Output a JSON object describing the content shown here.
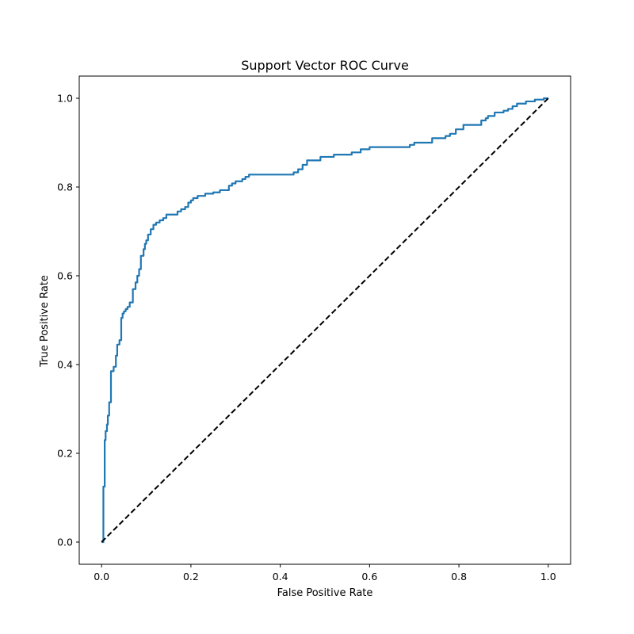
{
  "chart_data": {
    "type": "line",
    "title": "Support Vector ROC Curve",
    "xlabel": "False Positive Rate",
    "ylabel": "True Positive Rate",
    "xlim": [
      -0.05,
      1.05
    ],
    "ylim": [
      -0.05,
      1.05
    ],
    "xticks": [
      0.0,
      0.2,
      0.4,
      0.6,
      0.8,
      1.0
    ],
    "yticks": [
      0.0,
      0.2,
      0.4,
      0.6,
      0.8,
      1.0
    ],
    "xtick_labels": [
      "0.0",
      "0.2",
      "0.4",
      "0.6",
      "0.8",
      "1.0"
    ],
    "ytick_labels": [
      "0.0",
      "0.2",
      "0.4",
      "0.6",
      "0.8",
      "1.0"
    ],
    "grid": false,
    "legend": null,
    "series": [
      {
        "style": "solid",
        "color": "#1f77b4",
        "x": [
          0.0,
          0.004,
          0.004,
          0.007,
          0.007,
          0.009,
          0.009,
          0.012,
          0.012,
          0.014,
          0.014,
          0.017,
          0.017,
          0.021,
          0.021,
          0.027,
          0.027,
          0.032,
          0.032,
          0.035,
          0.035,
          0.04,
          0.04,
          0.044,
          0.044,
          0.047,
          0.047,
          0.05,
          0.05,
          0.054,
          0.054,
          0.058,
          0.058,
          0.063,
          0.063,
          0.07,
          0.07,
          0.076,
          0.076,
          0.08,
          0.08,
          0.084,
          0.084,
          0.088,
          0.088,
          0.094,
          0.094,
          0.097,
          0.097,
          0.1,
          0.1,
          0.104,
          0.104,
          0.11,
          0.11,
          0.116,
          0.116,
          0.122,
          0.122,
          0.13,
          0.13,
          0.138,
          0.138,
          0.145,
          0.145,
          0.17,
          0.17,
          0.178,
          0.178,
          0.187,
          0.187,
          0.194,
          0.194,
          0.2,
          0.2,
          0.205,
          0.205,
          0.215,
          0.215,
          0.232,
          0.232,
          0.25,
          0.25,
          0.265,
          0.265,
          0.285,
          0.285,
          0.292,
          0.292,
          0.3,
          0.3,
          0.315,
          0.315,
          0.322,
          0.322,
          0.33,
          0.33,
          0.43,
          0.43,
          0.44,
          0.44,
          0.45,
          0.45,
          0.46,
          0.46,
          0.49,
          0.49,
          0.52,
          0.52,
          0.56,
          0.56,
          0.58,
          0.58,
          0.6,
          0.6,
          0.69,
          0.69,
          0.7,
          0.7,
          0.74,
          0.74,
          0.77,
          0.77,
          0.78,
          0.78,
          0.793,
          0.793,
          0.81,
          0.81,
          0.85,
          0.85,
          0.86,
          0.86,
          0.865,
          0.865,
          0.88,
          0.88,
          0.9,
          0.9,
          0.91,
          0.91,
          0.92,
          0.92,
          0.93,
          0.93,
          0.95,
          0.95,
          0.97,
          0.97,
          0.99,
          0.99,
          1.0
        ],
        "y": [
          0.0,
          0.0,
          0.125,
          0.125,
          0.23,
          0.23,
          0.25,
          0.25,
          0.265,
          0.265,
          0.285,
          0.285,
          0.315,
          0.315,
          0.385,
          0.385,
          0.395,
          0.395,
          0.42,
          0.42,
          0.445,
          0.445,
          0.455,
          0.455,
          0.505,
          0.505,
          0.515,
          0.515,
          0.52,
          0.52,
          0.525,
          0.525,
          0.53,
          0.53,
          0.54,
          0.54,
          0.57,
          0.57,
          0.585,
          0.585,
          0.6,
          0.6,
          0.615,
          0.615,
          0.645,
          0.645,
          0.66,
          0.66,
          0.672,
          0.672,
          0.68,
          0.68,
          0.693,
          0.693,
          0.705,
          0.705,
          0.715,
          0.715,
          0.72,
          0.72,
          0.725,
          0.725,
          0.73,
          0.73,
          0.738,
          0.738,
          0.745,
          0.745,
          0.75,
          0.75,
          0.755,
          0.755,
          0.765,
          0.765,
          0.77,
          0.77,
          0.775,
          0.775,
          0.78,
          0.78,
          0.785,
          0.785,
          0.788,
          0.788,
          0.793,
          0.793,
          0.803,
          0.803,
          0.808,
          0.808,
          0.813,
          0.813,
          0.818,
          0.818,
          0.823,
          0.823,
          0.828,
          0.828,
          0.833,
          0.833,
          0.84,
          0.84,
          0.85,
          0.85,
          0.86,
          0.86,
          0.868,
          0.868,
          0.873,
          0.873,
          0.878,
          0.878,
          0.885,
          0.885,
          0.89,
          0.89,
          0.895,
          0.895,
          0.9,
          0.9,
          0.91,
          0.91,
          0.915,
          0.915,
          0.92,
          0.92,
          0.93,
          0.93,
          0.94,
          0.94,
          0.95,
          0.95,
          0.955,
          0.955,
          0.96,
          0.96,
          0.968,
          0.968,
          0.972,
          0.972,
          0.976,
          0.976,
          0.982,
          0.982,
          0.988,
          0.988,
          0.993,
          0.993,
          0.997,
          0.997,
          1.0,
          1.0
        ]
      },
      {
        "style": "dashed",
        "color": "#000000",
        "x": [
          0.0,
          1.0
        ],
        "y": [
          0.0,
          1.0
        ]
      }
    ]
  }
}
